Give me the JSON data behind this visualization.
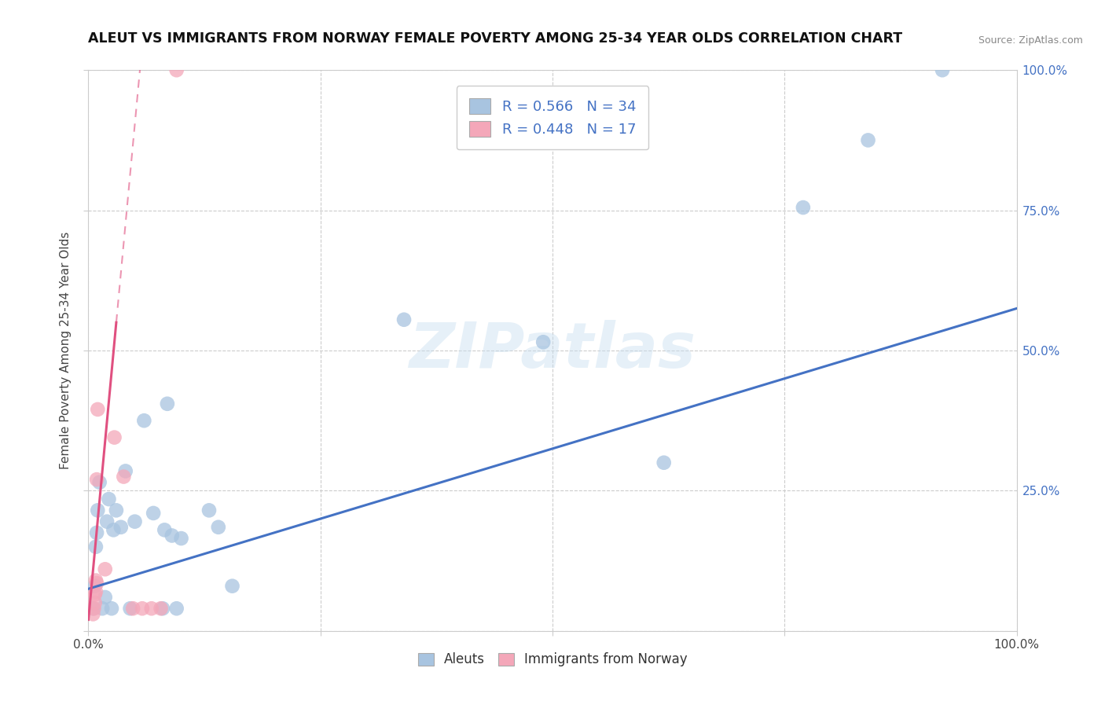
{
  "title": "ALEUT VS IMMIGRANTS FROM NORWAY FEMALE POVERTY AMONG 25-34 YEAR OLDS CORRELATION CHART",
  "source": "Source: ZipAtlas.com",
  "ylabel": "Female Poverty Among 25-34 Year Olds",
  "xlim": [
    0,
    1.0
  ],
  "ylim": [
    0,
    1.0
  ],
  "xtick_labels_bottom": [
    "0.0%",
    "",
    "",
    "",
    "100.0%"
  ],
  "xtick_vals": [
    0.0,
    0.25,
    0.5,
    0.75,
    1.0
  ],
  "ytick_labels_left": [
    "",
    "",
    "",
    "",
    ""
  ],
  "ytick_vals": [
    0.0,
    0.25,
    0.5,
    0.75,
    1.0
  ],
  "ytick_labels_right": [
    "",
    "25.0%",
    "50.0%",
    "75.0%",
    "100.0%"
  ],
  "aleuts_x": [
    0.005,
    0.007,
    0.008,
    0.009,
    0.01,
    0.012,
    0.015,
    0.018,
    0.02,
    0.022,
    0.025,
    0.027,
    0.03,
    0.035,
    0.04,
    0.045,
    0.05,
    0.06,
    0.07,
    0.08,
    0.082,
    0.085,
    0.09,
    0.095,
    0.1,
    0.13,
    0.14,
    0.155,
    0.34,
    0.49,
    0.62,
    0.77,
    0.84,
    0.92
  ],
  "aleuts_y": [
    0.04,
    0.08,
    0.15,
    0.175,
    0.215,
    0.265,
    0.04,
    0.06,
    0.195,
    0.235,
    0.04,
    0.18,
    0.215,
    0.185,
    0.285,
    0.04,
    0.195,
    0.375,
    0.21,
    0.04,
    0.18,
    0.405,
    0.17,
    0.04,
    0.165,
    0.215,
    0.185,
    0.08,
    0.555,
    0.515,
    0.3,
    0.755,
    0.875,
    1.0
  ],
  "norway_x": [
    0.005,
    0.006,
    0.007,
    0.007,
    0.008,
    0.008,
    0.009,
    0.009,
    0.01,
    0.018,
    0.028,
    0.038,
    0.048,
    0.058,
    0.068,
    0.078,
    0.095
  ],
  "norway_y": [
    0.03,
    0.04,
    0.05,
    0.065,
    0.07,
    0.09,
    0.085,
    0.27,
    0.395,
    0.11,
    0.345,
    0.275,
    0.04,
    0.04,
    0.04,
    0.04,
    1.0
  ],
  "aleuts_R": 0.566,
  "aleuts_N": 34,
  "norway_R": 0.448,
  "norway_N": 17,
  "aleuts_color": "#a8c4e0",
  "norway_color": "#f4a7b9",
  "aleuts_line_color": "#4472c4",
  "norway_line_color": "#e05080",
  "grid_color": "#cccccc",
  "background_color": "#ffffff",
  "watermark_text": "ZIPatlas",
  "aleuts_trendline": [
    [
      0.0,
      1.0
    ],
    [
      0.075,
      0.575
    ]
  ],
  "norway_trendline_solid": [
    [
      0.0,
      0.03
    ],
    [
      0.015,
      0.525
    ]
  ],
  "norway_trendline_dashed": [
    [
      0.0,
      0.03
    ],
    [
      0.015,
      1.05
    ]
  ],
  "legend_bottom_labels": [
    "Aleuts",
    "Immigrants from Norway"
  ]
}
